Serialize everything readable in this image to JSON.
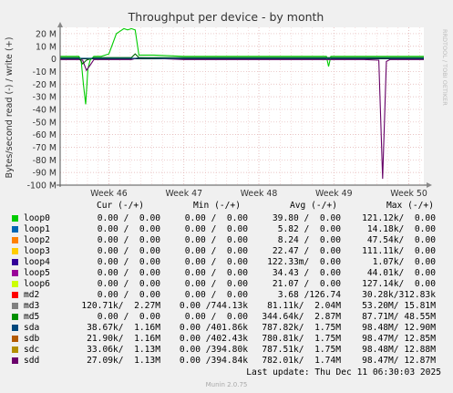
{
  "chart_data": {
    "type": "line",
    "title": "Throughput per device - by month",
    "ylabel": "Bytes/second read (-) / write (+)",
    "watermark": "RRDTOOL / TOBI OETIKER",
    "ylim": [
      -100,
      25
    ],
    "yticks": [
      "20 M",
      "10 M",
      "0",
      "-10 M",
      "-20 M",
      "-30 M",
      "-40 M",
      "-50 M",
      "-60 M",
      "-70 M",
      "-80 M",
      "-90 M",
      "-100 M"
    ],
    "ytick_values": [
      20,
      10,
      0,
      -10,
      -20,
      -30,
      -40,
      -50,
      -60,
      -70,
      -80,
      -90,
      -100
    ],
    "xlim": [
      45.35,
      50.2
    ],
    "xticks": [
      "Week 46",
      "Week 47",
      "Week 48",
      "Week 49",
      "Week 50"
    ],
    "xtick_values": [
      46,
      47,
      48,
      49,
      50
    ],
    "grid": true,
    "series": [
      {
        "name": "md3",
        "color": "#00cc00",
        "x": [
          45.35,
          45.5,
          45.6,
          45.63,
          45.66,
          45.69,
          45.72,
          45.75,
          45.8,
          45.9,
          46.0,
          46.05,
          46.1,
          46.15,
          46.2,
          46.25,
          46.3,
          46.35,
          46.4,
          46.6,
          47.0,
          47.5,
          48.0,
          48.5,
          48.9,
          48.93,
          48.96,
          49.0,
          49.3,
          49.5,
          49.8,
          50.1,
          50.2
        ],
        "values": [
          2,
          2,
          2,
          -1,
          -20,
          -36,
          -8,
          -1,
          2,
          2,
          4,
          12,
          20,
          22,
          24,
          23,
          24,
          23,
          3,
          3,
          2,
          2,
          2,
          2,
          2,
          -6,
          2,
          2,
          2,
          2,
          2,
          2,
          2
        ]
      },
      {
        "name": "sdd",
        "color": "#660066",
        "x": [
          45.35,
          45.6,
          45.65,
          45.7,
          45.75,
          45.8,
          46.3,
          46.4,
          46.6,
          47.0,
          47.5,
          48.0,
          49.0,
          49.4,
          49.6,
          49.65,
          49.7,
          49.75,
          49.8,
          50.0,
          50.2
        ],
        "values": [
          -0.5,
          -0.5,
          -1,
          -9,
          -5,
          -0.5,
          -0.5,
          1,
          0.5,
          -0.5,
          -0.5,
          -0.5,
          -0.5,
          -0.5,
          -1,
          -95,
          -2,
          -0.5,
          -0.5,
          -0.5,
          -0.5
        ]
      },
      {
        "name": "md5",
        "color": "#006600",
        "x": [
          45.35,
          45.5,
          45.6,
          45.65,
          45.7,
          45.8,
          46.3,
          46.35,
          46.4,
          47.0,
          48.0,
          49.0,
          50.0,
          50.2
        ],
        "values": [
          1,
          1,
          1,
          -4,
          -1,
          1,
          1,
          4,
          1,
          1,
          1,
          1,
          1,
          1
        ]
      },
      {
        "name": "sda",
        "color": "#005880",
        "x": [
          45.35,
          46.0,
          47.0,
          48.0,
          49.0,
          50.2
        ],
        "values": [
          0.5,
          0.5,
          0.5,
          0.5,
          0.5,
          0.5
        ]
      }
    ]
  },
  "legend": {
    "headers": {
      "cur": "Cur (-/+)",
      "min": "Min (-/+)",
      "avg": "Avg (-/+)",
      "max": "Max (-/+)"
    },
    "rows": [
      {
        "name": "loop0",
        "color": "#00cc00",
        "cur": "0.00 /  0.00",
        "min": "0.00 /  0.00",
        "avg": "39.80 /  0.00",
        "max": "121.12k/  0.00"
      },
      {
        "name": "loop1",
        "color": "#0066b3",
        "cur": "0.00 /  0.00",
        "min": "0.00 /  0.00",
        "avg": "5.82 /  0.00",
        "max": "14.18k/  0.00"
      },
      {
        "name": "loop2",
        "color": "#ff8000",
        "cur": "0.00 /  0.00",
        "min": "0.00 /  0.00",
        "avg": "8.24 /  0.00",
        "max": "47.54k/  0.00"
      },
      {
        "name": "loop3",
        "color": "#ffcc00",
        "cur": "0.00 /  0.00",
        "min": "0.00 /  0.00",
        "avg": "22.47 /  0.00",
        "max": "111.11k/  0.00"
      },
      {
        "name": "loop4",
        "color": "#330099",
        "cur": "0.00 /  0.00",
        "min": "0.00 /  0.00",
        "avg": "122.33m/  0.00",
        "max": "1.07k/  0.00"
      },
      {
        "name": "loop5",
        "color": "#990099",
        "cur": "0.00 /  0.00",
        "min": "0.00 /  0.00",
        "avg": "34.43 /  0.00",
        "max": "44.01k/  0.00"
      },
      {
        "name": "loop6",
        "color": "#ccff00",
        "cur": "0.00 /  0.00",
        "min": "0.00 /  0.00",
        "avg": "21.07 /  0.00",
        "max": "127.14k/  0.00"
      },
      {
        "name": "md2",
        "color": "#ff0000",
        "cur": "0.00 /  0.00",
        "min": "0.00 /  0.00",
        "avg": "3.68 /126.74",
        "max": "30.28k/312.83k"
      },
      {
        "name": "md3",
        "color": "#808080",
        "cur": "120.71k/  2.27M",
        "min": "0.00 /744.13k",
        "avg": "81.11k/  2.04M",
        "max": "53.20M/ 15.81M"
      },
      {
        "name": "md5",
        "color": "#008f00",
        "cur": "0.00 /  0.00",
        "min": "0.00 /  0.00",
        "avg": "344.64k/  2.87M",
        "max": "87.71M/ 48.55M"
      },
      {
        "name": "sda",
        "color": "#00487d",
        "cur": "38.67k/  1.16M",
        "min": "0.00 /401.86k",
        "avg": "787.82k/  1.75M",
        "max": "98.48M/ 12.90M"
      },
      {
        "name": "sdb",
        "color": "#b35a00",
        "cur": "21.90k/  1.16M",
        "min": "0.00 /402.43k",
        "avg": "780.81k/  1.75M",
        "max": "98.47M/ 12.85M"
      },
      {
        "name": "sdc",
        "color": "#b38f00",
        "cur": "33.06k/  1.13M",
        "min": "0.00 /394.80k",
        "avg": "787.51k/  1.75M",
        "max": "98.48M/ 12.88M"
      },
      {
        "name": "sdd",
        "color": "#6b006b",
        "cur": "27.09k/  1.13M",
        "min": "0.00 /394.84k",
        "avg": "782.01k/  1.74M",
        "max": "98.47M/ 12.87M"
      }
    ]
  },
  "footer": {
    "last_update": "Last update: Thu Dec 11 06:30:03 2025",
    "munin": "Munin 2.0.75"
  }
}
